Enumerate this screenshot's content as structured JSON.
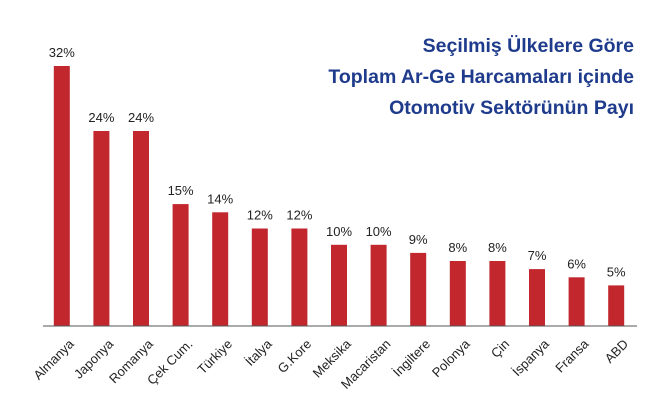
{
  "colors": {
    "bar": "#c1272d",
    "title": "#1f3b8c",
    "axis": "#555555",
    "text": "#222222"
  },
  "chart_data": {
    "type": "bar",
    "title_lines": [
      "Seçilmiş Ülkelere Göre",
      "Toplam Ar-Ge Harcamaları içinde",
      "Otomotiv Sektörünün Payı"
    ],
    "xlabel": "",
    "ylabel": "",
    "ylim": [
      0,
      32
    ],
    "grid": false,
    "legend": "none",
    "categories": [
      "Almanya",
      "Japonya",
      "Romanya",
      "Çek Cum.",
      "Türkiye",
      "İtalya",
      "G.Kore",
      "Meksika",
      "Macaristan",
      "İngiltere",
      "Polonya",
      "Çin",
      "İspanya",
      "Fransa",
      "ABD"
    ],
    "values": [
      32,
      24,
      24,
      15,
      14,
      12,
      12,
      10,
      10,
      9,
      8,
      8,
      7,
      6,
      5
    ],
    "value_labels": [
      "32%",
      "24%",
      "24%",
      "15%",
      "14%",
      "12%",
      "12%",
      "10%",
      "10%",
      "9%",
      "8%",
      "8%",
      "7%",
      "6%",
      "5%"
    ]
  }
}
